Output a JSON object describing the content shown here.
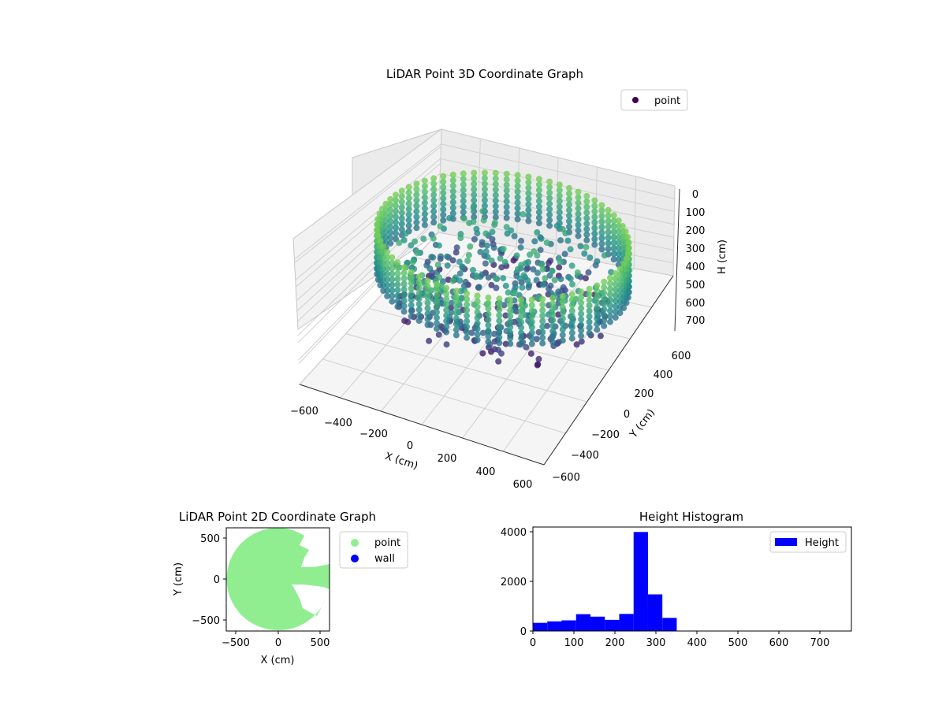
{
  "colors": {
    "viridis": [
      "#440154",
      "#3b528b",
      "#21918c",
      "#5ec962",
      "#fde725"
    ],
    "point_2d": "#90ee90",
    "wall_2d": "#0000ff",
    "histogram_bar": "#0000ff",
    "pane": "#f2f2f2",
    "grid": "#d0d0d0"
  },
  "chart_data": [
    {
      "type": "scatter",
      "title": "LiDAR Point 3D Coordinate Graph",
      "xlabel": "X (cm)",
      "ylabel": "Y (cm)",
      "zlabel": "H (cm)",
      "xlim": [
        -650,
        650
      ],
      "ylim": [
        -650,
        650
      ],
      "zlim": [
        0,
        750
      ],
      "z_inverted": true,
      "x_ticks": [
        "−600",
        "−400",
        "−200",
        "0",
        "200",
        "400",
        "600"
      ],
      "y_ticks": [
        "−600",
        "−400",
        "−200",
        "0",
        "200",
        "400",
        "600"
      ],
      "z_ticks": [
        "0",
        "100",
        "200",
        "300",
        "400",
        "500",
        "600",
        "700"
      ],
      "legend": {
        "location": "upper-right",
        "entries": [
          "point"
        ]
      },
      "colormap": "viridis",
      "color_by": "H (cm)",
      "series": [
        {
          "name": "point",
          "description": "ring of wall points (radius ≈ 600 cm, H 150–430 cm) plus interior cluster (H 250–650 cm)",
          "wall_radius": 600,
          "wall_h_range": [
            150,
            430
          ],
          "interior_h_range": [
            250,
            650
          ]
        }
      ],
      "grid": true
    },
    {
      "type": "scatter",
      "title": "LiDAR Point 2D Coordinate Graph",
      "xlabel": "X (cm)",
      "ylabel": "Y (cm)",
      "xlim": [
        -620,
        620
      ],
      "ylim": [
        -620,
        620
      ],
      "x_ticks": [
        "−500",
        "0",
        "500"
      ],
      "y_ticks": [
        "500",
        "0",
        "−500"
      ],
      "legend": {
        "location": "outside-right",
        "entries": [
          "point",
          "wall"
        ]
      },
      "series": [
        {
          "name": "point",
          "description": "dense filled disc of points, radius ≈ 620 cm, with notches on the right side"
        },
        {
          "name": "wall",
          "description": "no visible points"
        }
      ],
      "grid": false
    },
    {
      "type": "bar",
      "title": "Height Histogram",
      "xlabel": "",
      "ylabel": "",
      "xlim": [
        0,
        775
      ],
      "ylim": [
        0,
        4200
      ],
      "x_ticks": [
        "0",
        "100",
        "200",
        "300",
        "400",
        "500",
        "600",
        "700"
      ],
      "y_ticks": [
        "0",
        "2000",
        "4000"
      ],
      "legend": {
        "location": "upper-right",
        "entries": [
          "Height"
        ]
      },
      "bin_width": 35,
      "bins": [
        {
          "start": 0,
          "count": 330
        },
        {
          "start": 35,
          "count": 390
        },
        {
          "start": 70,
          "count": 430
        },
        {
          "start": 105,
          "count": 680
        },
        {
          "start": 140,
          "count": 580
        },
        {
          "start": 175,
          "count": 450
        },
        {
          "start": 210,
          "count": 690
        },
        {
          "start": 245,
          "count": 4000
        },
        {
          "start": 280,
          "count": 1480
        },
        {
          "start": 315,
          "count": 530
        }
      ],
      "grid": false
    }
  ]
}
